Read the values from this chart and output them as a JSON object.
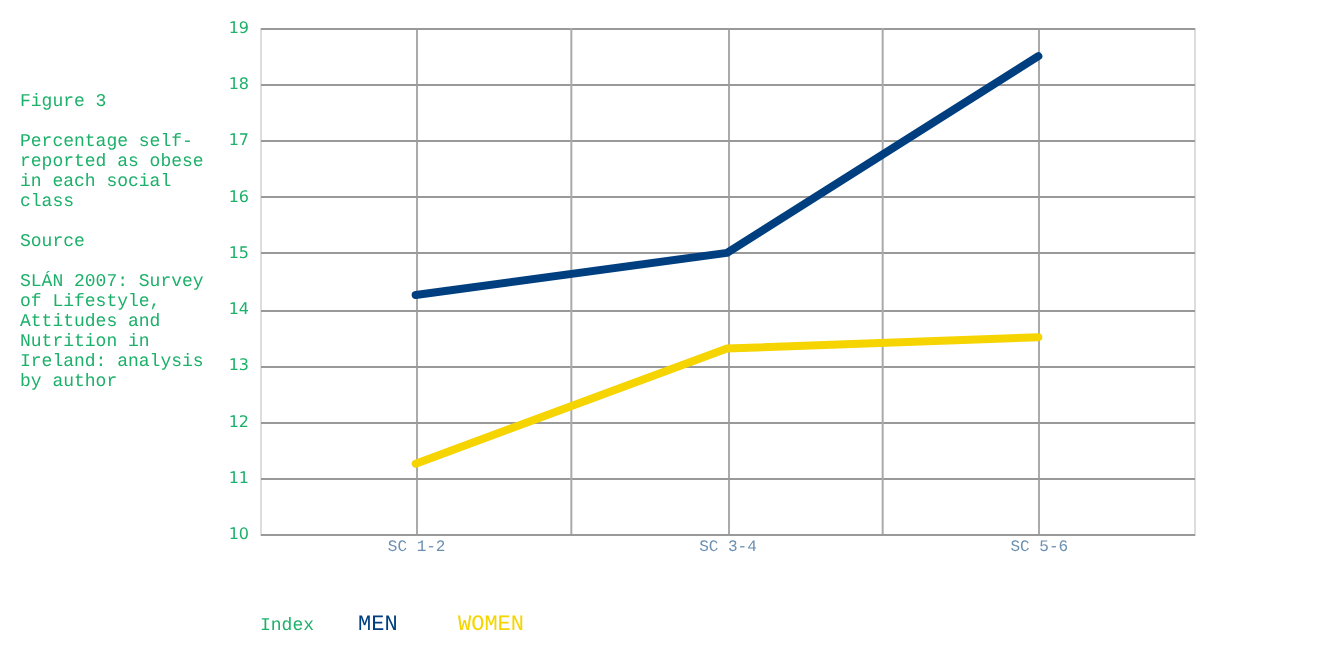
{
  "chart_data": {
    "type": "line",
    "title": "Figure 3",
    "subtitle": "Percentage self-reported as obese in each social class",
    "annotations": [
      "Source",
      "SLÁN 2007: Survey of Lifestyle, Attitudes and Nutrition in Ireland: analysis by author"
    ],
    "legend_title": "Index",
    "categories": [
      "SC 1-2",
      "SC 3-4",
      "SC 5-6"
    ],
    "series": [
      {
        "name": "MEN",
        "color": "#003f7f",
        "values": [
          14.25,
          15.0,
          18.5
        ]
      },
      {
        "name": "WOMEN",
        "color": "#f5d400",
        "values": [
          11.25,
          13.3,
          13.5
        ]
      }
    ],
    "ylim": [
      10,
      19
    ],
    "yticks": [
      10,
      11,
      12,
      13,
      14,
      15,
      16,
      17,
      18,
      19
    ],
    "grid": true,
    "legend": "bottom left",
    "marker": "none",
    "line_style": "solid"
  }
}
